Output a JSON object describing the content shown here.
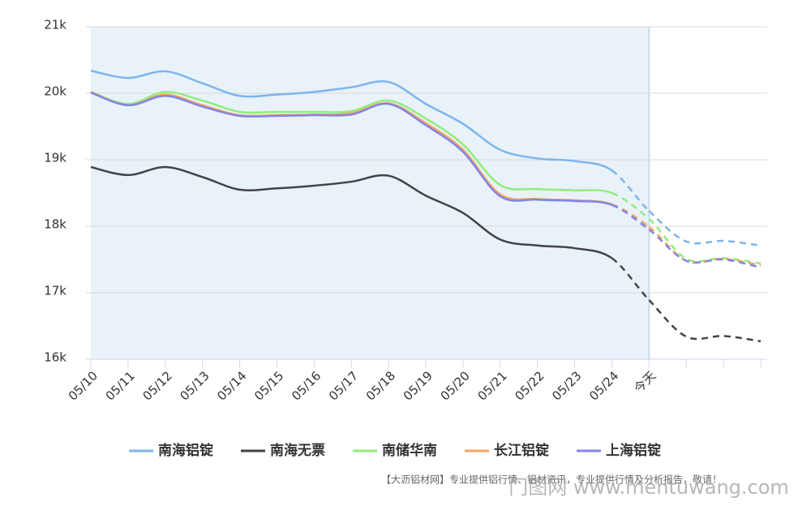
{
  "chart_data": {
    "type": "line",
    "categories": [
      "05/10",
      "05/11",
      "05/12",
      "05/13",
      "05/14",
      "05/15",
      "05/16",
      "05/17",
      "05/18",
      "05/19",
      "05/20",
      "05/21",
      "05/22",
      "05/23",
      "05/24",
      "今天",
      null,
      null,
      null
    ],
    "series": [
      {
        "name": "南海铝锭",
        "color": "#7cb5ec",
        "values": [
          20340,
          20230,
          20330,
          20150,
          19960,
          19980,
          20020,
          20090,
          20170,
          19840,
          19540,
          19150,
          19020,
          18980,
          18840,
          18230,
          17770,
          17780,
          17710
        ]
      },
      {
        "name": "南海无票",
        "color": "#434348",
        "values": [
          18890,
          18770,
          18890,
          18740,
          18550,
          18570,
          18610,
          18670,
          18760,
          18460,
          18200,
          17800,
          17710,
          17670,
          17520,
          16890,
          16340,
          16350,
          16270
        ]
      },
      {
        "name": "南储华南",
        "color": "#90ed7d",
        "values": [
          20020,
          19840,
          20020,
          19890,
          19720,
          19720,
          19720,
          19730,
          19890,
          19620,
          19230,
          18620,
          18560,
          18540,
          18500,
          18110,
          17510,
          17520,
          17440
        ]
      },
      {
        "name": "长江铝锭",
        "color": "#f7a35c",
        "values": [
          20020,
          19820,
          19980,
          19820,
          19670,
          19670,
          19680,
          19700,
          19850,
          19550,
          19150,
          18480,
          18410,
          18390,
          18330,
          17990,
          17480,
          17510,
          17410
        ]
      },
      {
        "name": "上海铝锭",
        "color": "#8085e9",
        "values": [
          20010,
          19820,
          19960,
          19800,
          19660,
          19660,
          19670,
          19680,
          19840,
          19520,
          19120,
          18450,
          18400,
          18380,
          18320,
          17950,
          17480,
          17500,
          17380
        ]
      }
    ],
    "ylim": [
      16000,
      21000
    ],
    "yticks": [
      {
        "value": 16000,
        "label": "16k"
      },
      {
        "value": 17000,
        "label": "17k"
      },
      {
        "value": 18000,
        "label": "18k"
      },
      {
        "value": 19000,
        "label": "19k"
      },
      {
        "value": 20000,
        "label": "20k"
      },
      {
        "value": 21000,
        "label": "21k"
      }
    ],
    "grid": true,
    "shaded_until": 15,
    "legend": "bottom",
    "credit": "【大沥铝材网】专业提供铝行情、铝材资讯，专业提供行情及分析报告，敬请！",
    "watermark": "门图网 www.mentuwang.com"
  }
}
